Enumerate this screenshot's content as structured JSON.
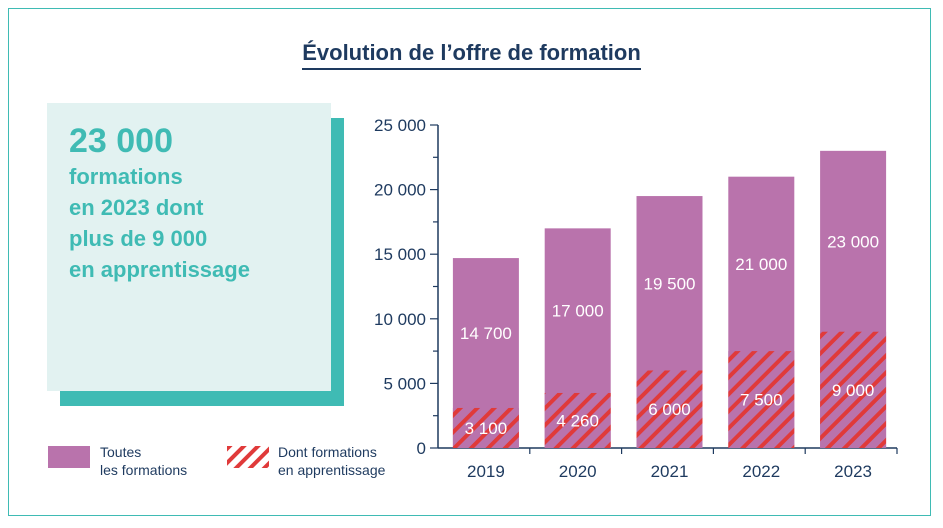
{
  "title": "Évolution de l’offre de formation",
  "kpi": {
    "value": "23 000",
    "lines": [
      "formations",
      "en 2023 dont",
      "plus de 9 000",
      "en apprentissage"
    ]
  },
  "legend": {
    "all": {
      "line1": "Toutes",
      "line2": "les formations"
    },
    "apprentissage": {
      "line1": "Dont formations",
      "line2": "en apprentissage"
    }
  },
  "colors": {
    "bar": "#b973ac",
    "hatch": "#e03a3a",
    "axis": "#1e3a5f",
    "accent": "#3fbbb4"
  },
  "chart_data": {
    "type": "bar",
    "categories": [
      "2019",
      "2020",
      "2021",
      "2022",
      "2023"
    ],
    "series": [
      {
        "name": "Toutes les formations",
        "values": [
          14700,
          17000,
          19500,
          21000,
          23000
        ],
        "labels": [
          "14 700",
          "17 000",
          "19 500",
          "21 000",
          "23 000"
        ]
      },
      {
        "name": "Dont formations en apprentissage",
        "values": [
          3100,
          4260,
          6000,
          7500,
          9000
        ],
        "labels": [
          "3 100",
          "4 260",
          "6 000",
          "7 500",
          "9 000"
        ]
      }
    ],
    "ylim": [
      0,
      25000
    ],
    "yticks": [
      0,
      5000,
      10000,
      15000,
      20000,
      25000
    ],
    "ytick_labels": [
      "0",
      "5 000",
      "10 000",
      "15 000",
      "20 000",
      "25 000"
    ],
    "legend_position": "bottom-left",
    "grid": false
  }
}
